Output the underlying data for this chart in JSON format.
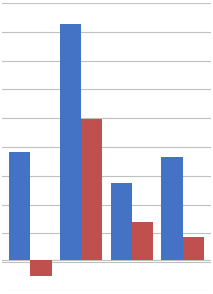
{
  "blue_values": [
    42,
    92,
    30,
    40
  ],
  "red_values": [
    -6,
    55,
    15,
    9
  ],
  "blue_color": "#4472C4",
  "red_color": "#C0504D",
  "bar_width": 0.42,
  "figsize": [
    2.13,
    2.94
  ],
  "dpi": 100,
  "background_color": "#FFFFFF",
  "grid_color": "#C0C0C0",
  "ylim": [
    -12,
    100
  ],
  "n_gridlines": 11
}
